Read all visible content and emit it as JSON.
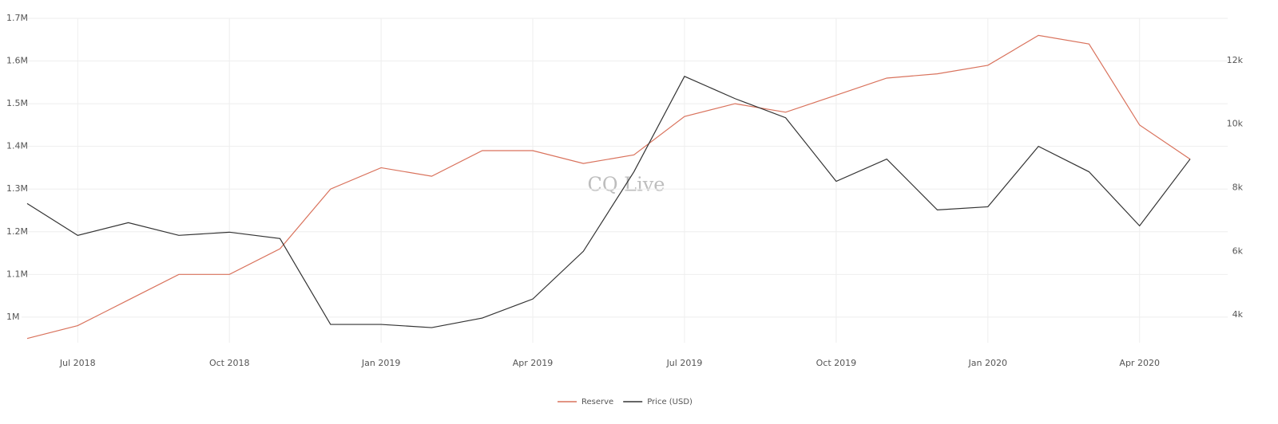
{
  "chart_data": {
    "type": "line",
    "watermark": "CQ Live",
    "x": [
      "2018-06",
      "2018-07",
      "2018-08",
      "2018-09",
      "2018-10",
      "2018-11",
      "2018-12",
      "2019-01",
      "2019-02",
      "2019-03",
      "2019-04",
      "2019-05",
      "2019-06",
      "2019-07",
      "2019-08",
      "2019-09",
      "2019-10",
      "2019-11",
      "2019-12",
      "2020-01",
      "2020-02",
      "2020-03",
      "2020-04",
      "2020-05"
    ],
    "xlim": [
      "2018-06",
      "2020-05"
    ],
    "xticks": [
      {
        "value": "2018-07",
        "label": "Jul 2018"
      },
      {
        "value": "2018-10",
        "label": "Oct 2018"
      },
      {
        "value": "2019-01",
        "label": "Jan 2019"
      },
      {
        "value": "2019-04",
        "label": "Apr 2019"
      },
      {
        "value": "2019-07",
        "label": "Jul 2019"
      },
      {
        "value": "2019-10",
        "label": "Oct 2019"
      },
      {
        "value": "2020-01",
        "label": "Jan 2020"
      },
      {
        "value": "2020-04",
        "label": "Apr 2020"
      }
    ],
    "ylim": [
      940000,
      1700000
    ],
    "yticks": [
      {
        "value": 1000000,
        "label": "1M"
      },
      {
        "value": 1100000,
        "label": "1.1M"
      },
      {
        "value": 1200000,
        "label": "1.2M"
      },
      {
        "value": 1300000,
        "label": "1.3M"
      },
      {
        "value": 1400000,
        "label": "1.4M"
      },
      {
        "value": 1500000,
        "label": "1.5M"
      },
      {
        "value": 1600000,
        "label": "1.6M"
      },
      {
        "value": 1700000,
        "label": "1.7M"
      }
    ],
    "y2lim": [
      3125,
      13325
    ],
    "y2ticks": [
      {
        "value": 4000,
        "label": "4k"
      },
      {
        "value": 6000,
        "label": "6k"
      },
      {
        "value": 8000,
        "label": "8k"
      },
      {
        "value": 10000,
        "label": "10k"
      },
      {
        "value": 12000,
        "label": "12k"
      }
    ],
    "grid": true,
    "legend": "bottom",
    "series": [
      {
        "name": "Reserve",
        "color": "#d9725c",
        "values": [
          950000,
          980000,
          1040000,
          1100000,
          1100000,
          1160000,
          1300000,
          1350000,
          1330000,
          1390000,
          1390000,
          1360000,
          1380000,
          1470000,
          1500000,
          1480000,
          1520000,
          1560000,
          1570000,
          1590000,
          1660000,
          1640000,
          1450000,
          1370000
        ]
      },
      {
        "name": "Price (USD)",
        "color": "#333333",
        "axis": "y2",
        "values": [
          7500,
          6500,
          6900,
          6500,
          6600,
          6400,
          3700,
          3700,
          3600,
          3900,
          4500,
          6000,
          8500,
          11500,
          10800,
          10200,
          8200,
          8900,
          7300,
          7400,
          9300,
          8500,
          6800,
          8900
        ]
      }
    ]
  }
}
